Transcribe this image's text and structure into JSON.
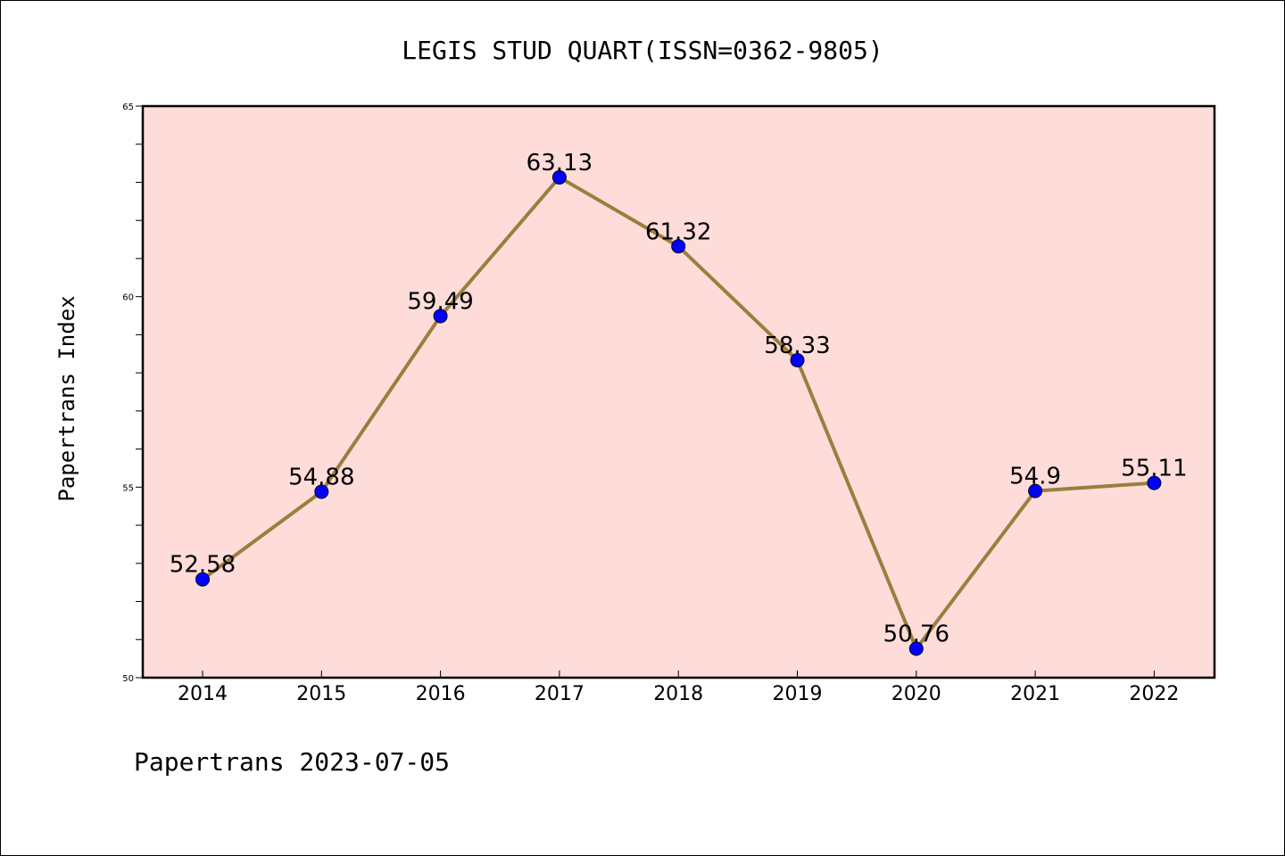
{
  "chart_data": {
    "type": "line",
    "title": "LEGIS STUD QUART(ISSN=0362-9805)",
    "xlabel": "",
    "ylabel": "Papertrans Index",
    "categories": [
      "2014",
      "2015",
      "2016",
      "2017",
      "2018",
      "2019",
      "2020",
      "2021",
      "2022"
    ],
    "values": [
      52.58,
      54.88,
      59.49,
      63.13,
      61.32,
      58.33,
      50.76,
      54.9,
      55.11
    ],
    "data_labels": [
      "52.58",
      "54.88",
      "59.49",
      "63.13",
      "61.32",
      "58.33",
      "50.76",
      "54.9",
      "55.11"
    ],
    "ylim": [
      50,
      65
    ],
    "y_ticks": [
      50,
      55,
      60,
      65
    ],
    "y_tick_labels": [
      "50",
      "55",
      "60",
      "65"
    ],
    "grid": false,
    "colors": {
      "plot_background": "#fddcda",
      "line": "#9a7f3d",
      "marker": "#0000ff"
    }
  },
  "footer": "Papertrans 2023-07-05"
}
